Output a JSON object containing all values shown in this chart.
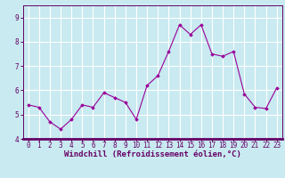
{
  "x": [
    0,
    1,
    2,
    3,
    4,
    5,
    6,
    7,
    8,
    9,
    10,
    11,
    12,
    13,
    14,
    15,
    16,
    17,
    18,
    19,
    20,
    21,
    22,
    23
  ],
  "y": [
    5.4,
    5.3,
    4.7,
    4.4,
    4.8,
    5.4,
    5.3,
    5.9,
    5.7,
    5.5,
    4.8,
    6.2,
    6.6,
    7.6,
    8.7,
    8.3,
    8.7,
    7.5,
    7.4,
    7.6,
    5.85,
    5.3,
    5.25,
    6.1
  ],
  "line_color": "#990099",
  "marker": "D",
  "marker_size": 1.8,
  "xlabel": "Windchill (Refroidissement éolien,°C)",
  "xlabel_fontsize": 6.5,
  "ylim": [
    4.0,
    9.5
  ],
  "yticks": [
    4,
    5,
    6,
    7,
    8,
    9
  ],
  "xticks": [
    0,
    1,
    2,
    3,
    4,
    5,
    6,
    7,
    8,
    9,
    10,
    11,
    12,
    13,
    14,
    15,
    16,
    17,
    18,
    19,
    20,
    21,
    22,
    23
  ],
  "bg_color": "#c8eaf0",
  "grid_color": "#ffffff",
  "tick_fontsize": 5.5,
  "line_width": 0.8
}
